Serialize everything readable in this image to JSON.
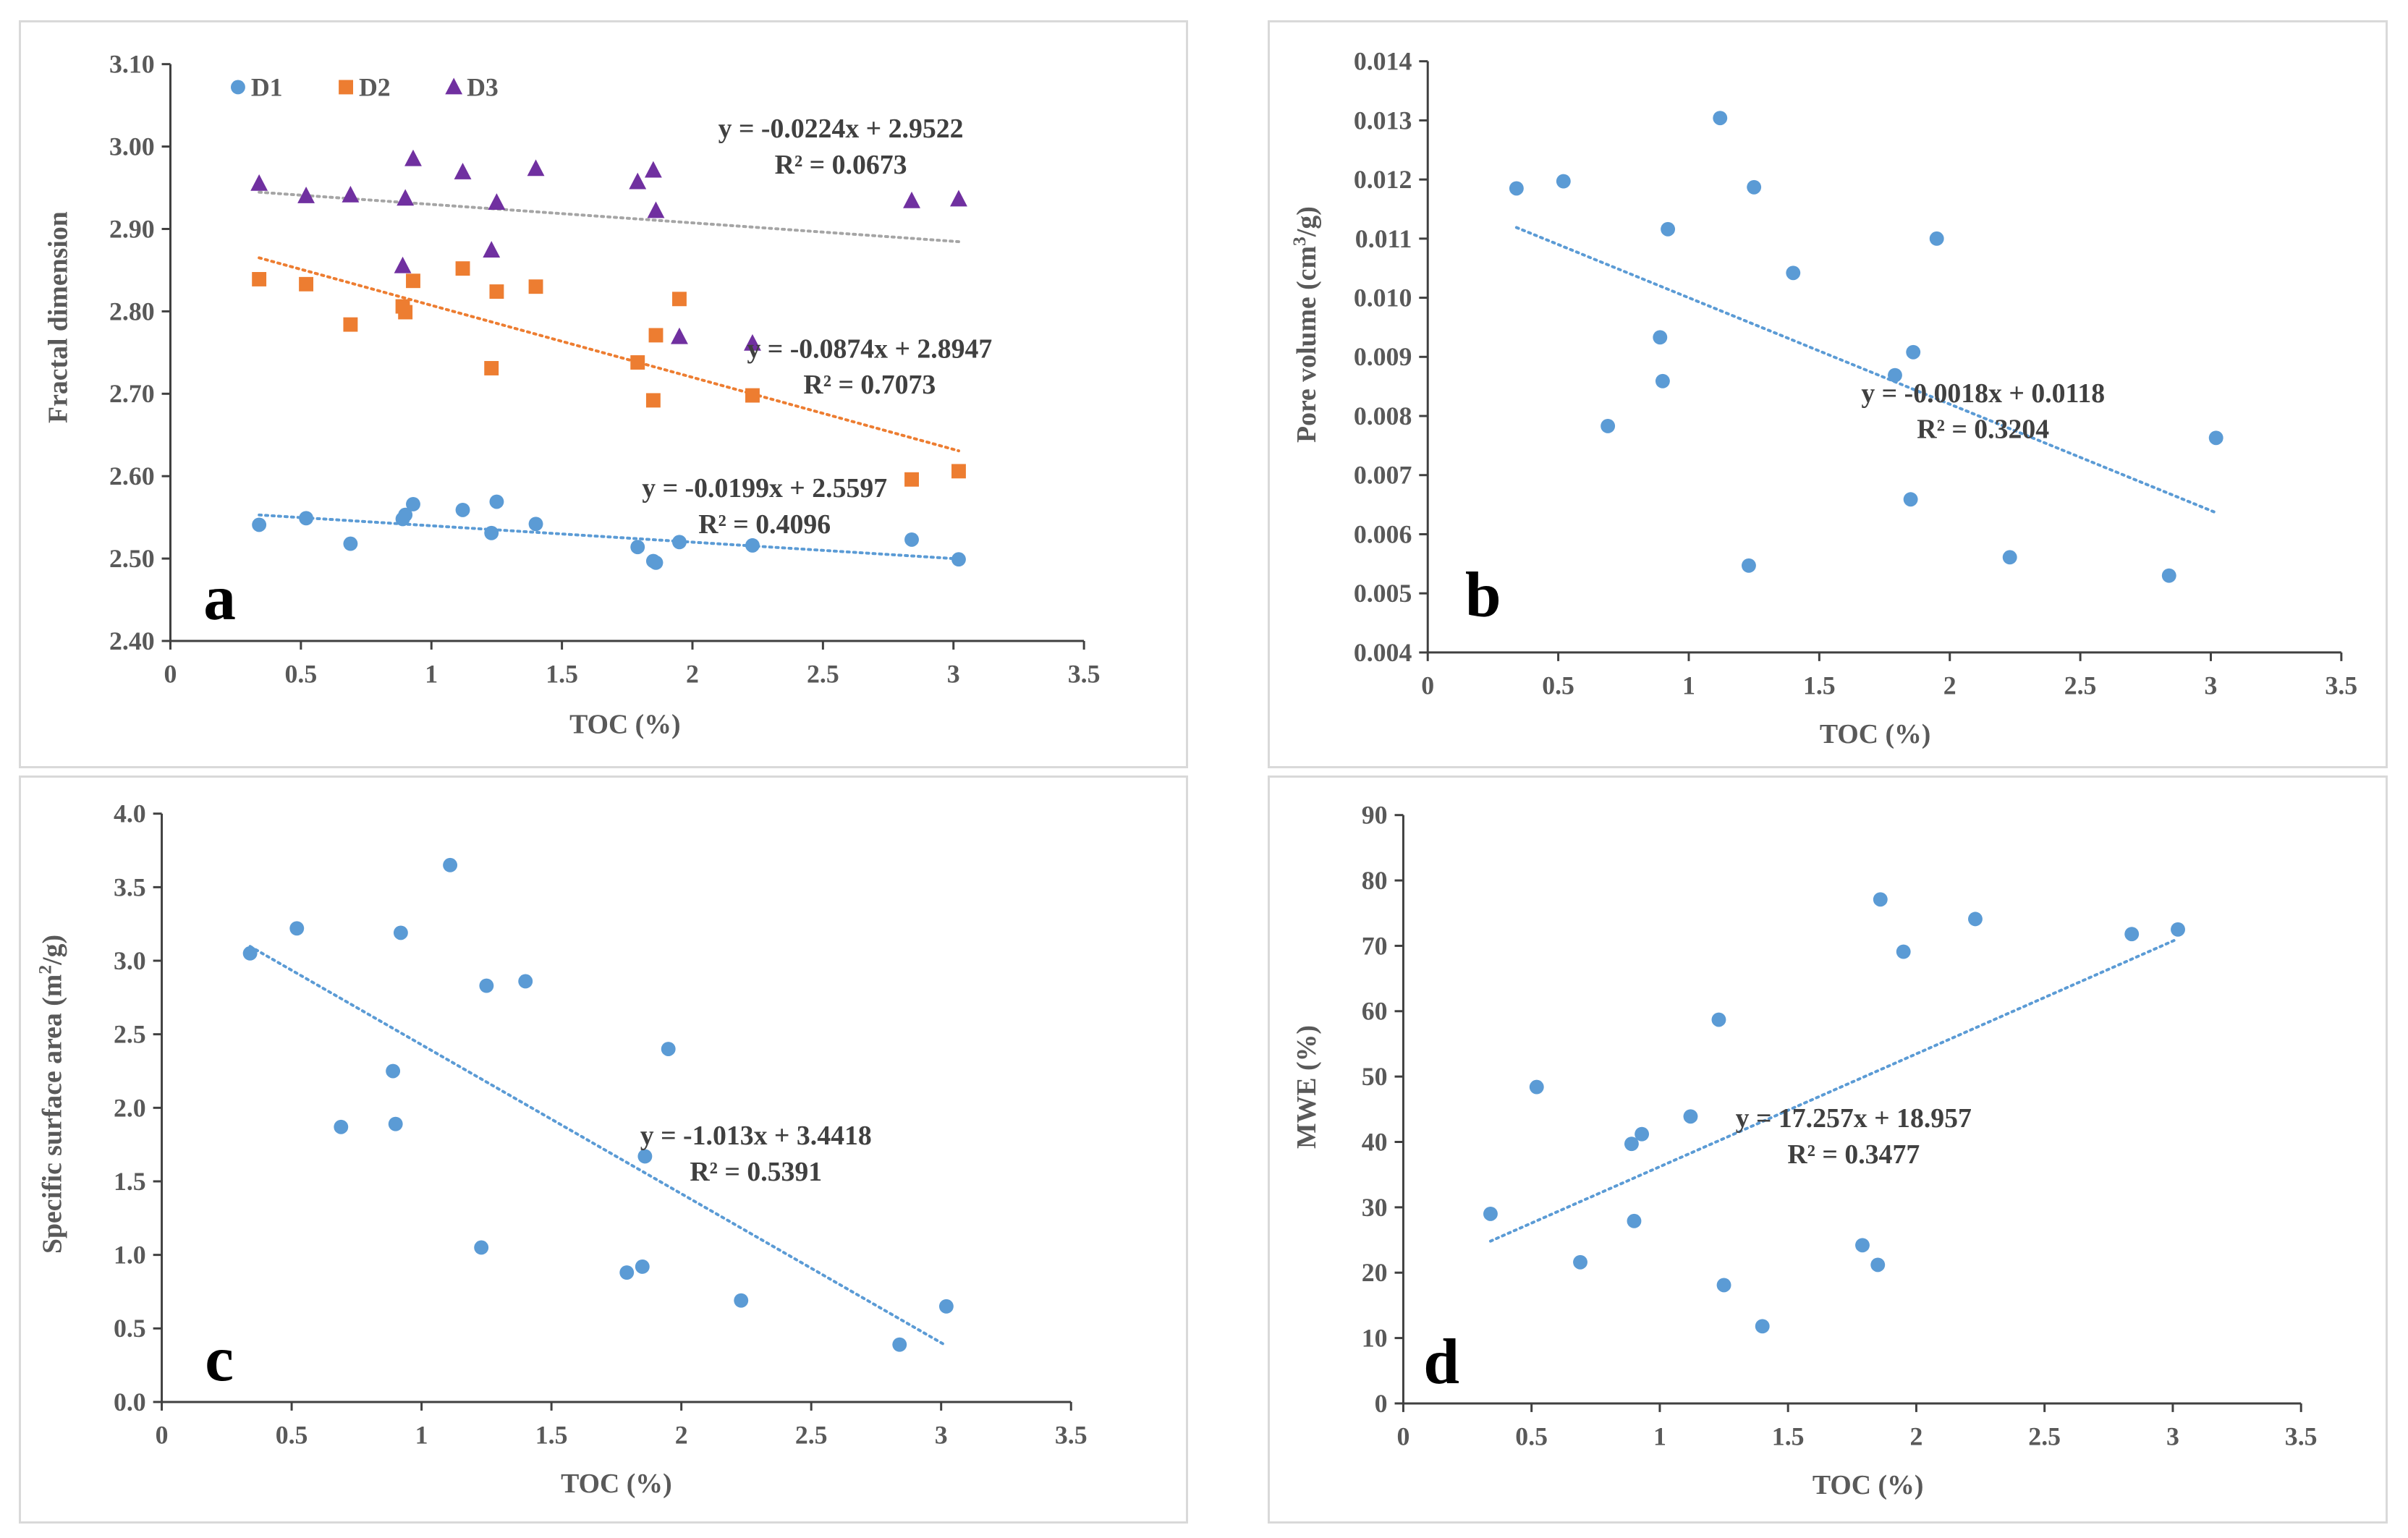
{
  "chart_data": [
    {
      "id": "a",
      "type": "scatter",
      "panel_label": "a",
      "xlabel": "TOC (%)",
      "ylabel": "Fractal dimension",
      "xlim": [
        0,
        3.5
      ],
      "ylim": [
        2.4,
        3.1
      ],
      "xticks": [
        0,
        0.5,
        1,
        1.5,
        2,
        2.5,
        3,
        3.5
      ],
      "xtick_labels": [
        "0",
        "0.5",
        "1",
        "1.5",
        "2",
        "2.5",
        "3",
        "3.5"
      ],
      "yticks": [
        2.4,
        2.5,
        2.6,
        2.7,
        2.8,
        2.9,
        3.0,
        3.1
      ],
      "ytick_labels": [
        "2.40",
        "2.50",
        "2.60",
        "2.70",
        "2.80",
        "2.90",
        "3.00",
        "3.10"
      ],
      "legend_position": "top-left",
      "series": [
        {
          "name": "D1",
          "marker": "circle",
          "color": "#5B9BD5",
          "x": [
            0.34,
            0.52,
            0.69,
            0.89,
            0.9,
            0.93,
            1.12,
            1.23,
            1.25,
            1.4,
            1.79,
            1.85,
            1.86,
            1.95,
            2.23,
            2.84,
            3.02
          ],
          "y": [
            2.541,
            2.549,
            2.518,
            2.548,
            2.553,
            2.566,
            2.559,
            2.531,
            2.569,
            2.542,
            2.514,
            2.497,
            2.495,
            2.52,
            2.516,
            2.523,
            2.499
          ],
          "trend": {
            "slope": -0.0199,
            "intercept": 2.5597,
            "color": "#5B9BD5",
            "equation": "y = -0.0199x + 2.5597",
            "r2": "R² = 0.4096"
          }
        },
        {
          "name": "D2",
          "marker": "square",
          "color": "#ED7D31",
          "x": [
            0.34,
            0.52,
            0.69,
            0.89,
            0.9,
            0.93,
            1.12,
            1.23,
            1.25,
            1.4,
            1.79,
            1.85,
            1.86,
            1.95,
            2.23,
            2.84,
            3.02
          ],
          "y": [
            2.839,
            2.833,
            2.784,
            2.806,
            2.799,
            2.837,
            2.852,
            2.731,
            2.824,
            2.83,
            2.738,
            2.692,
            2.771,
            2.815,
            2.698,
            2.596,
            2.606
          ],
          "trend": {
            "slope": -0.0874,
            "intercept": 2.8947,
            "color": "#ED7D31",
            "equation": "y = -0.0874x + 2.8947",
            "r2": "R² = 0.7073"
          }
        },
        {
          "name": "D3",
          "marker": "triangle",
          "color": "#7030A0",
          "x": [
            0.34,
            0.52,
            0.69,
            0.89,
            0.9,
            0.93,
            1.12,
            1.23,
            1.25,
            1.4,
            1.79,
            1.85,
            1.86,
            1.95,
            2.23,
            2.84,
            3.02
          ],
          "y": [
            2.955,
            2.94,
            2.941,
            2.855,
            2.937,
            2.985,
            2.969,
            2.874,
            2.932,
            2.973,
            2.957,
            2.971,
            2.922,
            2.769,
            2.761,
            2.934,
            2.936
          ],
          "trend": {
            "slope": -0.0224,
            "intercept": 2.9522,
            "color": "#A5A5A5",
            "equation": "y = -0.0224x + 2.9522",
            "r2": "R² = 0.0673"
          }
        }
      ]
    },
    {
      "id": "b",
      "type": "scatter",
      "panel_label": "b",
      "xlabel": "TOC (%)",
      "ylabel_parts": [
        "Pore volume (cm",
        "3",
        "/g)"
      ],
      "xlim": [
        0,
        3.5
      ],
      "ylim": [
        0.004,
        0.014
      ],
      "xticks": [
        0,
        0.5,
        1,
        1.5,
        2,
        2.5,
        3,
        3.5
      ],
      "xtick_labels": [
        "0",
        "0.5",
        "1",
        "1.5",
        "2",
        "2.5",
        "3",
        "3.5"
      ],
      "yticks": [
        0.004,
        0.005,
        0.006,
        0.007,
        0.008,
        0.009,
        0.01,
        0.011,
        0.012,
        0.013,
        0.014
      ],
      "ytick_labels": [
        "0.004",
        "0.005",
        "0.006",
        "0.007",
        "0.008",
        "0.009",
        "0.010",
        "0.011",
        "0.012",
        "0.013",
        "0.014"
      ],
      "series": [
        {
          "name": "Pore volume",
          "marker": "circle",
          "color": "#5B9BD5",
          "x": [
            0.34,
            0.52,
            0.69,
            0.89,
            0.9,
            0.92,
            1.12,
            1.23,
            1.25,
            1.4,
            1.79,
            1.85,
            1.86,
            1.95,
            2.23,
            2.84,
            3.02
          ],
          "y": [
            0.01185,
            0.01197,
            0.00783,
            0.00933,
            0.00859,
            0.01116,
            0.01304,
            0.00547,
            0.01187,
            0.01042,
            0.00869,
            0.00659,
            0.00908,
            0.011,
            0.00561,
            0.0053,
            0.00763
          ],
          "trend": {
            "slope": -0.0018,
            "intercept": 0.0118,
            "color": "#5B9BD5",
            "equation": "y = -0.0018x + 0.0118",
            "r2": "R² = 0.3204"
          }
        }
      ]
    },
    {
      "id": "c",
      "type": "scatter",
      "panel_label": "c",
      "xlabel": "TOC (%)",
      "ylabel_parts": [
        "Specific surface area (m",
        "2",
        "/g)"
      ],
      "xlim": [
        0,
        3.5
      ],
      "ylim": [
        0,
        4.0
      ],
      "xticks": [
        0,
        0.5,
        1,
        1.5,
        2,
        2.5,
        3,
        3.5
      ],
      "xtick_labels": [
        "0",
        "0.5",
        "1",
        "1.5",
        "2",
        "2.5",
        "3",
        "3.5"
      ],
      "yticks": [
        0,
        0.5,
        1.0,
        1.5,
        2.0,
        2.5,
        3.0,
        3.5,
        4.0
      ],
      "ytick_labels": [
        "0.0",
        "0.5",
        "1.0",
        "1.5",
        "2.0",
        "2.5",
        "3.0",
        "3.5",
        "4.0"
      ],
      "series": [
        {
          "name": "Specific surface area",
          "marker": "circle",
          "color": "#5B9BD5",
          "x": [
            0.34,
            0.52,
            0.69,
            0.89,
            0.9,
            0.92,
            1.11,
            1.23,
            1.25,
            1.4,
            1.79,
            1.85,
            1.86,
            1.95,
            2.23,
            2.84,
            3.02
          ],
          "y": [
            3.05,
            3.22,
            1.87,
            2.25,
            1.89,
            3.19,
            3.65,
            1.05,
            2.83,
            2.86,
            0.88,
            0.92,
            1.67,
            2.4,
            0.69,
            0.39,
            0.65
          ],
          "trend": {
            "slope": -1.013,
            "intercept": 3.4418,
            "color": "#5B9BD5",
            "equation": "y = -1.013x + 3.4418",
            "r2": "R² = 0.5391"
          }
        }
      ]
    },
    {
      "id": "d",
      "type": "scatter",
      "panel_label": "d",
      "xlabel": "TOC (%)",
      "ylabel": "MWE (%)",
      "xlim": [
        0,
        3.5
      ],
      "ylim": [
        0,
        90
      ],
      "xticks": [
        0,
        0.5,
        1,
        1.5,
        2,
        2.5,
        3,
        3.5
      ],
      "xtick_labels": [
        "0",
        "0.5",
        "1",
        "1.5",
        "2",
        "2.5",
        "3",
        "3.5"
      ],
      "yticks": [
        0,
        10,
        20,
        30,
        40,
        50,
        60,
        70,
        80,
        90
      ],
      "ytick_labels": [
        "0",
        "10",
        "20",
        "30",
        "40",
        "50",
        "60",
        "70",
        "80",
        "90"
      ],
      "series": [
        {
          "name": "MWE",
          "marker": "circle",
          "color": "#5B9BD5",
          "x": [
            0.34,
            0.52,
            0.69,
            0.89,
            0.9,
            0.93,
            1.12,
            1.23,
            1.25,
            1.4,
            1.79,
            1.85,
            1.86,
            1.95,
            2.23,
            2.84,
            3.02
          ],
          "y": [
            29.0,
            48.4,
            21.6,
            39.7,
            27.9,
            41.2,
            43.9,
            58.7,
            18.1,
            11.8,
            24.2,
            21.2,
            77.1,
            69.1,
            74.1,
            71.8,
            72.5
          ],
          "trend": {
            "slope": 17.257,
            "intercept": 18.957,
            "color": "#5B9BD5",
            "equation": "y = 17.257x + 18.957",
            "r2": "R² = 0.3477"
          }
        }
      ]
    }
  ]
}
